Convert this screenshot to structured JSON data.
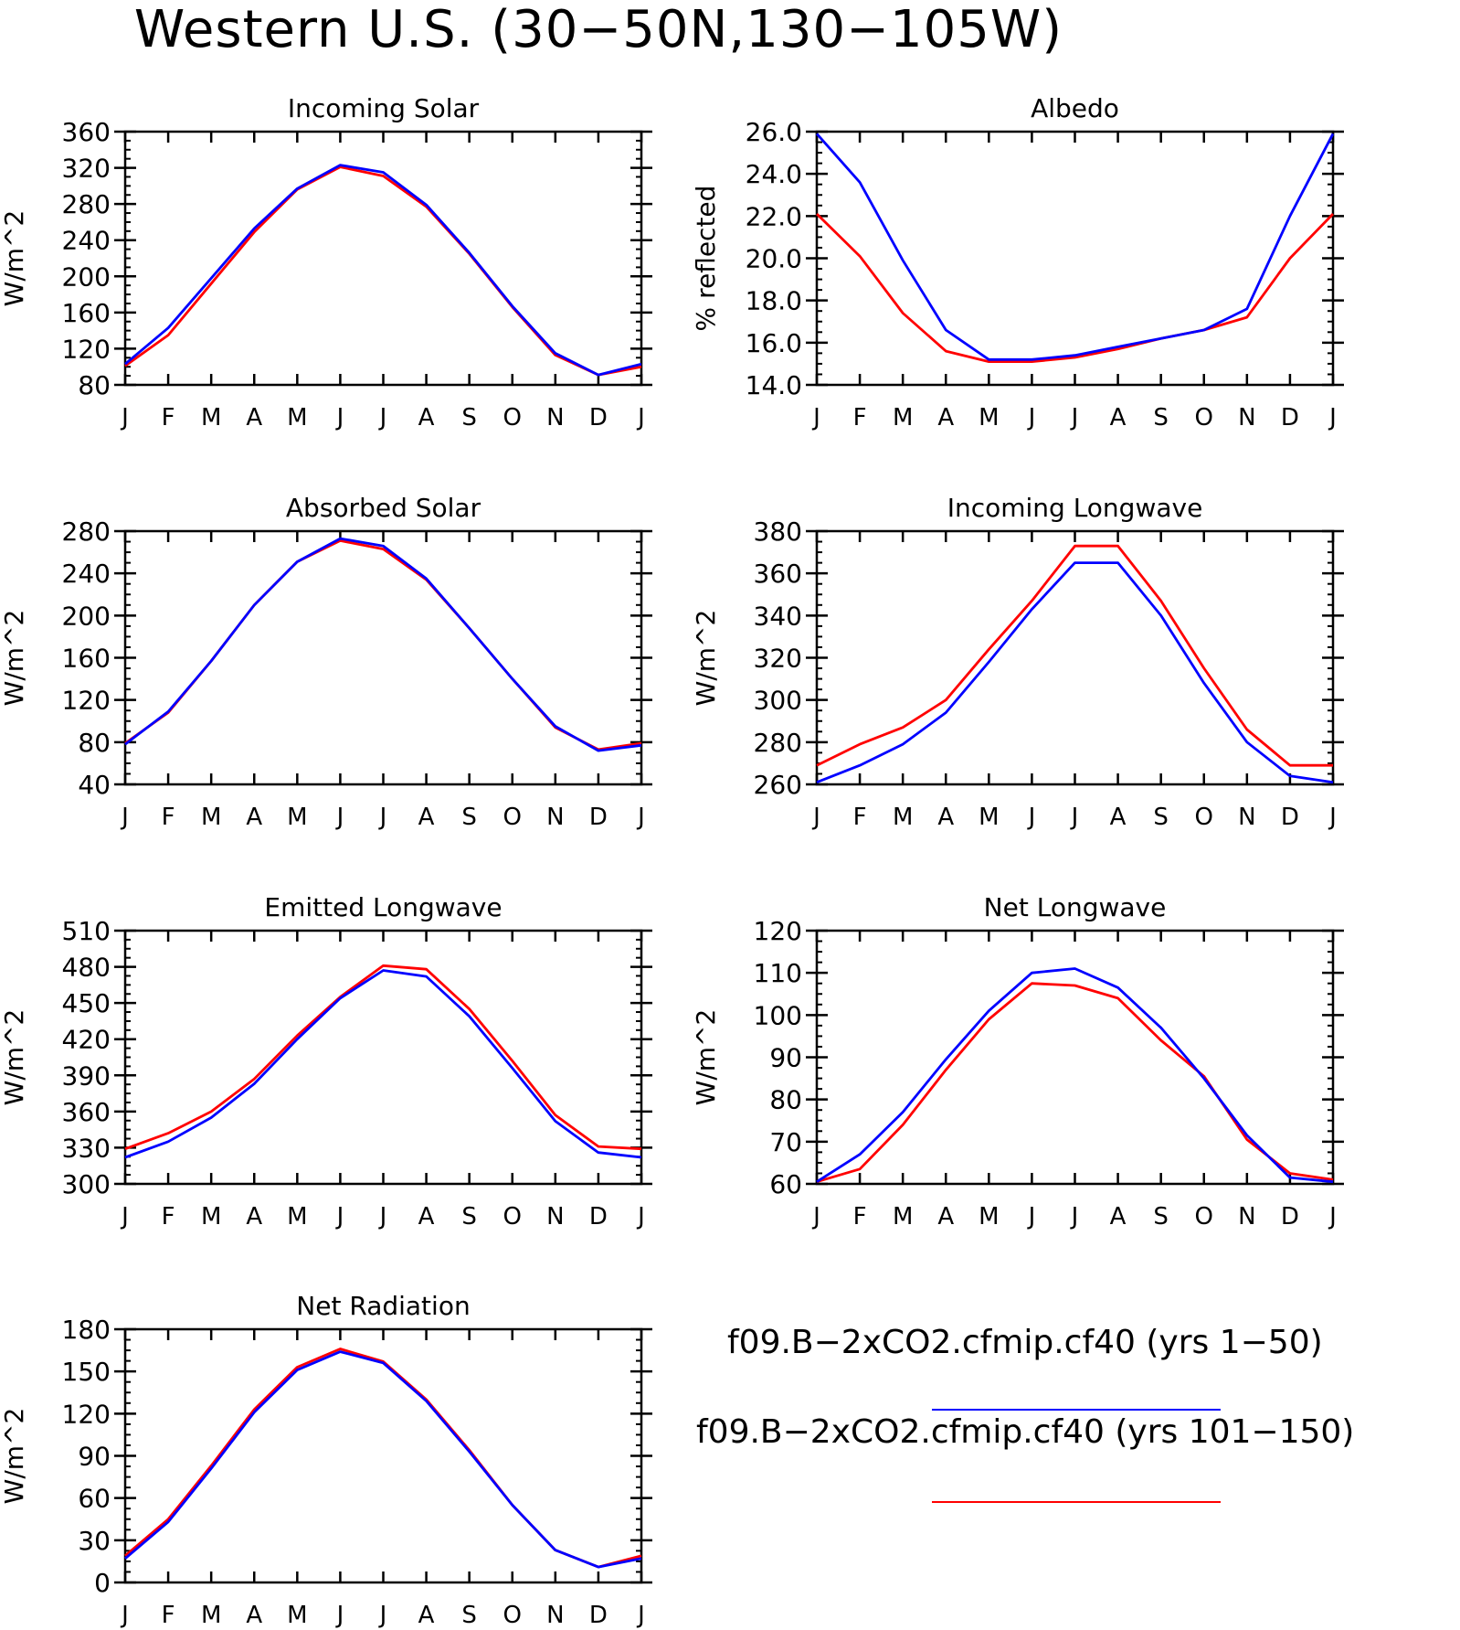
{
  "title": "Western U.S. (30−50N,130−105W)",
  "legend": [
    {
      "label": "f09.B−2xCO2.cfmip.cf40 (yrs 1−50)",
      "color": "#0000ff"
    },
    {
      "label": "f09.B−2xCO2.cfmip.cf40 (yrs 101−150)",
      "color": "#ff0000"
    }
  ],
  "chart_data": [
    {
      "type": "line",
      "title": "Incoming Solar",
      "ylabel": "W/m^2",
      "categories": [
        "J",
        "F",
        "M",
        "A",
        "M",
        "J",
        "J",
        "A",
        "S",
        "O",
        "N",
        "D",
        "J"
      ],
      "ylim": [
        80,
        360
      ],
      "yticks": [
        "80",
        "120",
        "160",
        "200",
        "240",
        "280",
        "320",
        "360"
      ],
      "series": [
        {
          "color": "#0000ff",
          "values": [
            103,
            143,
            198,
            253,
            297,
            323,
            315,
            279,
            226,
            167,
            115,
            91,
            103
          ]
        },
        {
          "color": "#ff0000",
          "values": [
            101,
            135,
            192,
            249,
            296,
            321,
            311,
            277,
            225,
            166,
            113,
            91,
            100
          ]
        }
      ]
    },
    {
      "type": "line",
      "title": "Albedo",
      "ylabel": "% reflected",
      "categories": [
        "J",
        "F",
        "M",
        "A",
        "M",
        "J",
        "J",
        "A",
        "S",
        "O",
        "N",
        "D",
        "J"
      ],
      "ylim": [
        14.0,
        26.0
      ],
      "yticks": [
        "14.0",
        "16.0",
        "18.0",
        "20.0",
        "22.0",
        "24.0",
        "26.0"
      ],
      "series": [
        {
          "color": "#0000ff",
          "values": [
            25.9,
            23.6,
            19.9,
            16.6,
            15.2,
            15.2,
            15.4,
            15.8,
            16.2,
            16.6,
            17.6,
            22.0,
            25.9
          ]
        },
        {
          "color": "#ff0000",
          "values": [
            22.1,
            20.1,
            17.4,
            15.6,
            15.1,
            15.1,
            15.3,
            15.7,
            16.2,
            16.6,
            17.2,
            20.0,
            22.1
          ]
        }
      ]
    },
    {
      "type": "line",
      "title": "Absorbed Solar",
      "ylabel": "W/m^2",
      "categories": [
        "J",
        "F",
        "M",
        "A",
        "M",
        "J",
        "J",
        "A",
        "S",
        "O",
        "N",
        "D",
        "J"
      ],
      "ylim": [
        40,
        280
      ],
      "yticks": [
        "40",
        "80",
        "120",
        "160",
        "200",
        "240",
        "280"
      ],
      "series": [
        {
          "color": "#0000ff",
          "values": [
            78,
            109,
            157,
            210,
            251,
            273,
            266,
            235,
            188,
            140,
            95,
            72,
            77
          ]
        },
        {
          "color": "#ff0000",
          "values": [
            79,
            108,
            157,
            210,
            251,
            271,
            263,
            234,
            188,
            140,
            94,
            73,
            79
          ]
        }
      ]
    },
    {
      "type": "line",
      "title": "Incoming Longwave",
      "ylabel": "W/m^2",
      "categories": [
        "J",
        "F",
        "M",
        "A",
        "M",
        "J",
        "J",
        "A",
        "S",
        "O",
        "N",
        "D",
        "J"
      ],
      "ylim": [
        260,
        380
      ],
      "yticks": [
        "260",
        "280",
        "300",
        "320",
        "340",
        "360",
        "380"
      ],
      "series": [
        {
          "color": "#0000ff",
          "values": [
            261,
            269,
            279,
            294,
            318,
            343,
            365,
            365,
            340,
            308,
            280,
            264,
            261
          ]
        },
        {
          "color": "#ff0000",
          "values": [
            269,
            279,
            287,
            300,
            324,
            347,
            373,
            373,
            347,
            315,
            286,
            269,
            269
          ]
        }
      ]
    },
    {
      "type": "line",
      "title": "Emitted Longwave",
      "ylabel": "W/m^2",
      "categories": [
        "J",
        "F",
        "M",
        "A",
        "M",
        "J",
        "J",
        "A",
        "S",
        "O",
        "N",
        "D",
        "J"
      ],
      "ylim": [
        300,
        510
      ],
      "yticks": [
        "300",
        "330",
        "360",
        "390",
        "420",
        "450",
        "480",
        "510"
      ],
      "series": [
        {
          "color": "#0000ff",
          "values": [
            322,
            335,
            355,
            383,
            420,
            454,
            477,
            472,
            439,
            396,
            352,
            326,
            322
          ]
        },
        {
          "color": "#ff0000",
          "values": [
            329,
            342,
            360,
            387,
            423,
            455,
            481,
            478,
            445,
            402,
            357,
            331,
            329
          ]
        }
      ]
    },
    {
      "type": "line",
      "title": "Net Longwave",
      "ylabel": "W/m^2",
      "categories": [
        "J",
        "F",
        "M",
        "A",
        "M",
        "J",
        "J",
        "A",
        "S",
        "O",
        "N",
        "D",
        "J"
      ],
      "ylim": [
        60,
        120
      ],
      "yticks": [
        "60",
        "70",
        "80",
        "90",
        "100",
        "110",
        "120"
      ],
      "series": [
        {
          "color": "#0000ff",
          "values": [
            60.5,
            67,
            77,
            89.5,
            101,
            110,
            111,
            106.5,
            97,
            85,
            71.5,
            61.5,
            60.5
          ]
        },
        {
          "color": "#ff0000",
          "values": [
            60.5,
            63.5,
            74,
            87,
            99,
            107.5,
            107,
            104,
            94,
            85.5,
            70.5,
            62.5,
            61
          ]
        }
      ]
    },
    {
      "type": "line",
      "title": "Net Radiation",
      "ylabel": "W/m^2",
      "categories": [
        "J",
        "F",
        "M",
        "A",
        "M",
        "J",
        "J",
        "A",
        "S",
        "O",
        "N",
        "D",
        "J"
      ],
      "ylim": [
        0,
        180
      ],
      "yticks": [
        "0",
        "30",
        "60",
        "90",
        "120",
        "150",
        "180"
      ],
      "series": [
        {
          "color": "#0000ff",
          "values": [
            17,
            43,
            81,
            121,
            151,
            164,
            156,
            129,
            93,
            55,
            23,
            11,
            17
          ]
        },
        {
          "color": "#ff0000",
          "values": [
            19,
            45,
            83,
            123,
            153,
            166,
            157,
            130,
            94,
            55,
            23,
            11,
            19
          ]
        }
      ]
    }
  ]
}
